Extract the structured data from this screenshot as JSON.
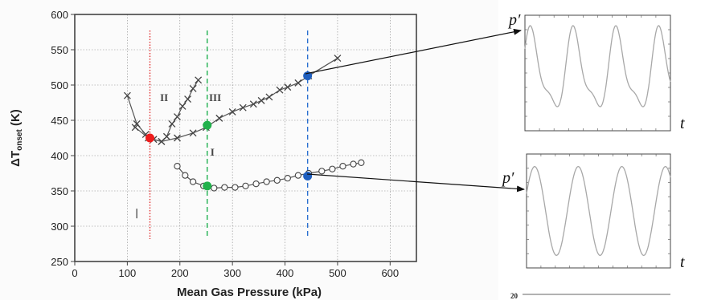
{
  "chart_data": [
    {
      "type": "scatter",
      "xlabel": "Mean Gas Pressure (kPa)",
      "ylabel_main": "ΔT",
      "ylabel_sub": "onset",
      "ylabel_unit": " (K)",
      "xlim": [
        0,
        650
      ],
      "ylim": [
        250,
        600
      ],
      "xticks": [
        "0",
        "100",
        "200",
        "300",
        "400",
        "500",
        "600"
      ],
      "yticks": [
        "250",
        "300",
        "350",
        "400",
        "450",
        "500",
        "550",
        "600"
      ],
      "grid": true,
      "annotations": [
        {
          "text": "II",
          "x": 170,
          "y": 477
        },
        {
          "text": "III",
          "x": 267,
          "y": 477
        },
        {
          "text": "I",
          "x": 262,
          "y": 400
        }
      ],
      "series": [
        {
          "name": "",
          "marker": "x",
          "x": [
            100,
            118,
            135,
            150,
            165,
            175,
            185,
            195,
            205,
            215,
            225,
            235
          ],
          "y": [
            485,
            445,
            430,
            423,
            420,
            427,
            445,
            455,
            470,
            480,
            495,
            507
          ]
        },
        {
          "name": "",
          "marker": "x",
          "x": [
            115,
            140,
            165,
            195,
            225,
            250,
            275,
            300,
            320,
            340,
            355,
            370,
            390,
            405,
            425,
            445,
            500
          ],
          "y": [
            440,
            425,
            420,
            425,
            432,
            440,
            453,
            462,
            468,
            473,
            478,
            483,
            493,
            497,
            503,
            513,
            538
          ]
        },
        {
          "name": "",
          "marker": "o",
          "x": [
            195,
            210,
            225,
            245,
            265,
            285,
            305,
            325,
            345,
            365,
            385,
            405,
            425,
            445,
            470,
            490,
            510,
            530,
            545
          ],
          "y": [
            385,
            372,
            363,
            357,
            354,
            355,
            355,
            357,
            360,
            363,
            365,
            368,
            372,
            375,
            378,
            381,
            385,
            388,
            390
          ]
        },
        {
          "name": "",
          "marker": "dot",
          "x": [
            118
          ],
          "y": [
            318
          ]
        }
      ],
      "vlines": [
        {
          "x": 143,
          "color": "#e03030",
          "style": "dotted"
        },
        {
          "x": 252,
          "color": "#20b050",
          "style": "dashed"
        },
        {
          "x": 443,
          "color": "#2a6fd0",
          "style": "dashed"
        }
      ],
      "highlights": [
        {
          "x": 143,
          "y": 425,
          "color": "#ee1c1c"
        },
        {
          "x": 252,
          "y": 443,
          "color": "#22b14c"
        },
        {
          "x": 252,
          "y": 357,
          "color": "#22b14c"
        },
        {
          "x": 443,
          "y": 513,
          "color": "#1f5fbf"
        },
        {
          "x": 443,
          "y": 371,
          "color": "#1f5fbf"
        }
      ]
    },
    {
      "type": "line",
      "ylabel": "p′",
      "xlabel": "t",
      "waveform": "distorted-periodic",
      "cycles": 3.4
    },
    {
      "type": "line",
      "ylabel": "p′",
      "xlabel": "t",
      "waveform": "sinusoidal",
      "cycles": 3.3
    }
  ],
  "fragment_label": "20",
  "colors": {
    "axis": "#444444",
    "grid": "#888888",
    "series": "#555555",
    "wave": "#a8a8a8"
  }
}
